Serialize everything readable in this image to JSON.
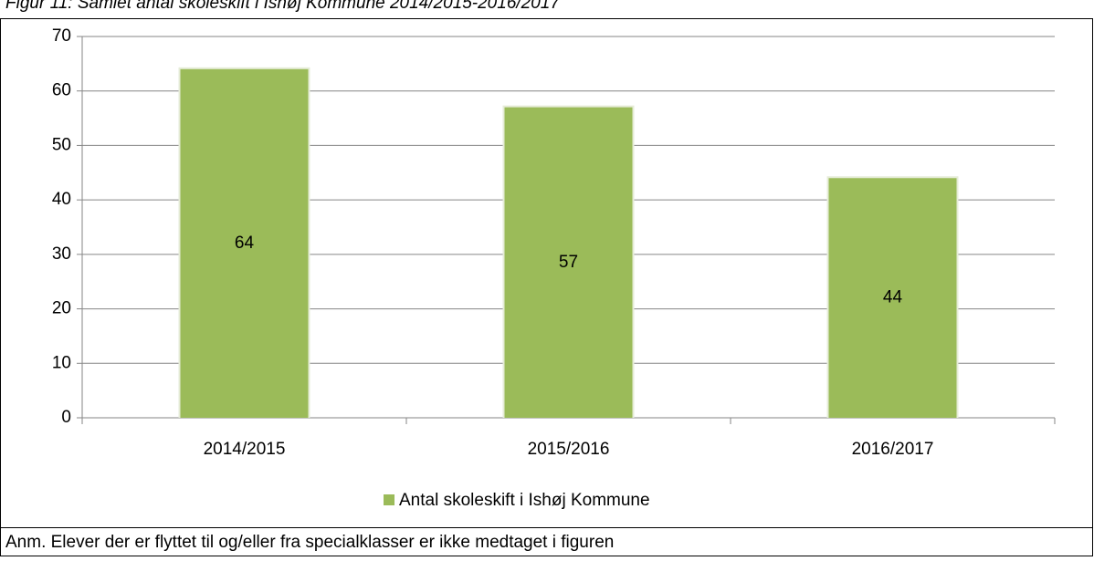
{
  "chart_data": {
    "type": "bar",
    "title": "Figur 11: Samlet antal skoleskift i Ishøj Kommune 2014/2015-2016/2017",
    "categories": [
      "2014/2015",
      "2015/2016",
      "2016/2017"
    ],
    "series": [
      {
        "name": "Antal skoleskift i Ishøj Kommune",
        "color": "#9bbb59",
        "values": [
          64,
          57,
          44
        ]
      }
    ],
    "ylim": [
      0,
      70
    ],
    "yticks": [
      0,
      10,
      20,
      30,
      40,
      50,
      60,
      70
    ],
    "grid": true,
    "data_labels": true,
    "legend": "bottom",
    "note": "Anm. Elever der er flyttet til og/eller fra specialklasser er ikke medtaget i figuren"
  }
}
